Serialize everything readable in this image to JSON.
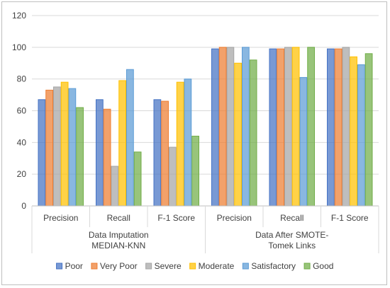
{
  "chart_data": {
    "type": "bar",
    "groups": [
      {
        "label_lines": [
          "Data Imputation",
          "MEDIAN-KNN"
        ],
        "categories": [
          "Precision",
          "Recall",
          "F-1 Score"
        ]
      },
      {
        "label_lines": [
          "Data After SMOTE-",
          "Tomek Links"
        ],
        "categories": [
          "Precision",
          "Recall",
          "F-1 Score"
        ]
      }
    ],
    "series": [
      {
        "name": "Poor",
        "color": "#4472C4",
        "values": [
          67,
          67,
          67,
          99,
          99,
          99
        ]
      },
      {
        "name": "Very Poor",
        "color": "#ED7D31",
        "values": [
          73,
          61,
          66,
          100,
          99,
          99
        ]
      },
      {
        "name": "Severe",
        "color": "#A5A5A5",
        "values": [
          75,
          25,
          37,
          100,
          100,
          100
        ]
      },
      {
        "name": "Moderate",
        "color": "#FFC000",
        "values": [
          78,
          79,
          78,
          90,
          100,
          94
        ]
      },
      {
        "name": "Satisfactory",
        "color": "#5B9BD5",
        "values": [
          74,
          86,
          80,
          100,
          81,
          89
        ]
      },
      {
        "name": "Good",
        "color": "#70AD47",
        "values": [
          62,
          34,
          44,
          92,
          100,
          96
        ]
      }
    ],
    "ylim": [
      0,
      120
    ],
    "yticks": [
      0,
      20,
      40,
      60,
      80,
      100,
      120
    ],
    "grid": true,
    "legend": "bottom"
  }
}
